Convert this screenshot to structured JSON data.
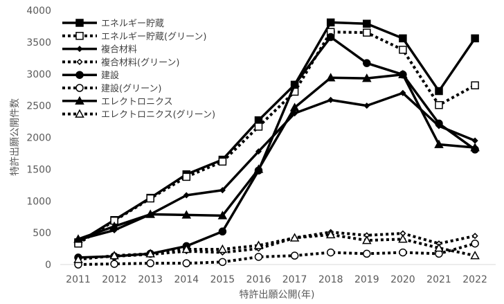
{
  "chart_data": {
    "type": "line",
    "title": "",
    "xlabel": "特許出願公開(年)",
    "ylabel": "特許出願公開件数",
    "ylim": [
      0,
      4000
    ],
    "yticks": [
      0,
      500,
      1000,
      1500,
      2000,
      2500,
      3000,
      3500,
      4000
    ],
    "grid": false,
    "legend_position": "top-left",
    "categories": [
      "2011",
      "2012",
      "2013",
      "2014",
      "2015",
      "2016",
      "2017",
      "2018",
      "2019",
      "2020",
      "2021",
      "2022"
    ],
    "series": [
      {
        "name": "エネルギー貯蔵",
        "line": "solid",
        "marker": "square",
        "marker_fill": "filled",
        "values": [
          350,
          700,
          1050,
          1420,
          1650,
          2270,
          2830,
          3810,
          3790,
          3560,
          2730,
          3560
        ]
      },
      {
        "name": "エネルギー貯蔵(グリーン)",
        "line": "dotted",
        "marker": "square",
        "marker_fill": "hollow",
        "values": [
          330,
          690,
          1040,
          1380,
          1620,
          2170,
          2720,
          3660,
          3650,
          3380,
          2510,
          2820
        ]
      },
      {
        "name": "複合材料",
        "line": "solid",
        "marker": "diamond",
        "marker_fill": "filled",
        "values": [
          390,
          540,
          790,
          1090,
          1170,
          1780,
          2380,
          2590,
          2500,
          2700,
          2180,
          1950
        ]
      },
      {
        "name": "複合材料(グリーン)",
        "line": "dotted",
        "marker": "diamond",
        "marker_fill": "hollow",
        "values": [
          100,
          130,
          160,
          210,
          190,
          250,
          420,
          510,
          460,
          490,
          330,
          450
        ]
      },
      {
        "name": "建設",
        "line": "solid",
        "marker": "circle",
        "marker_fill": "filled",
        "values": [
          110,
          130,
          170,
          290,
          520,
          1480,
          2830,
          3580,
          3170,
          2990,
          2220,
          1810
        ]
      },
      {
        "name": "建設(グリーン)",
        "line": "dotted",
        "marker": "circle",
        "marker_fill": "hollow",
        "values": [
          0,
          10,
          20,
          20,
          40,
          120,
          140,
          190,
          170,
          190,
          170,
          330
        ]
      },
      {
        "name": "エレクトロニクス",
        "line": "solid",
        "marker": "triangle",
        "marker_fill": "filled",
        "values": [
          400,
          600,
          790,
          780,
          770,
          1500,
          2470,
          2940,
          2930,
          2990,
          1890,
          1840
        ]
      },
      {
        "name": "エレクトロニクス(グリーン)",
        "line": "dotted",
        "marker": "triangle",
        "marker_fill": "hollow",
        "values": [
          80,
          140,
          170,
          240,
          240,
          300,
          420,
          470,
          380,
          400,
          260,
          140
        ]
      }
    ]
  }
}
